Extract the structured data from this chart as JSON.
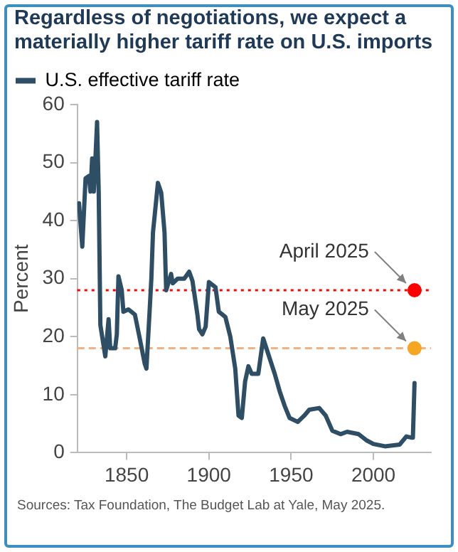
{
  "chart_data": {
    "type": "line",
    "title": "Regardless of negotiations, we expect a materially higher tariff rate on U.S. imports",
    "ylabel": "Percent",
    "legend": "top left",
    "xlim": [
      1820,
      2035
    ],
    "xticks": [
      1850,
      1900,
      1950,
      2000
    ],
    "ylim": [
      0,
      60
    ],
    "yticks": [
      0,
      10,
      20,
      30,
      40,
      50,
      60
    ],
    "series": [
      {
        "name": "U.S. effective tariff rate",
        "color": "#2e4e66",
        "x": [
          1821,
          1823,
          1825,
          1827,
          1828,
          1829,
          1830,
          1831,
          1832,
          1833,
          1834,
          1837,
          1839,
          1840,
          1843,
          1844,
          1845,
          1847,
          1848,
          1851,
          1855,
          1858,
          1861,
          1862,
          1864,
          1865,
          1866,
          1869,
          1871,
          1873,
          1874,
          1877,
          1878,
          1881,
          1885,
          1888,
          1890,
          1893,
          1894,
          1896,
          1898,
          1900,
          1904,
          1906,
          1910,
          1913,
          1916,
          1918,
          1920,
          1922,
          1924,
          1926,
          1930,
          1933,
          1937,
          1940,
          1943,
          1946,
          1949,
          1954,
          1958,
          1961,
          1967,
          1971,
          1975,
          1980,
          1984,
          1991,
          1996,
          2000,
          2007,
          2016,
          2020,
          2023,
          2024,
          2025
        ],
        "values": [
          43,
          35.5,
          47.3,
          47.7,
          45,
          50.7,
          45,
          50.7,
          57,
          44.8,
          22,
          16.6,
          23,
          18,
          18,
          20.4,
          30.4,
          28,
          24.3,
          24.7,
          23.8,
          19.6,
          15.3,
          14.5,
          24.7,
          30,
          38,
          46.5,
          44.8,
          38,
          28,
          30.8,
          29.2,
          30,
          30,
          31.2,
          29.6,
          23.8,
          21.3,
          20.4,
          21.7,
          29.4,
          28.5,
          24.3,
          23.4,
          20,
          14.5,
          6.4,
          6,
          12.3,
          14.9,
          13.6,
          13.6,
          19.7,
          16.2,
          13.6,
          10.6,
          8.1,
          6,
          5.3,
          6.4,
          7.4,
          7.7,
          6.4,
          3.8,
          3.2,
          3.6,
          3.2,
          2.1,
          1.5,
          1.1,
          1.4,
          2.8,
          2.6,
          2.6,
          12
        ],
        "line_style": "solid",
        "marker": "none"
      },
      {
        "type": "scatter",
        "x": [
          2025,
          2025
        ],
        "values": [
          28,
          18
        ],
        "colors": [
          "#ff0000",
          "#f5a623"
        ],
        "marker": "circle"
      }
    ],
    "ref_lines": [
      {
        "axis": "y",
        "value": 28,
        "color": "#ff0000",
        "line_style": "dotted"
      },
      {
        "axis": "y",
        "value": 18,
        "color": "#f4b183",
        "line_style": "dashed"
      }
    ],
    "annotations": [
      {
        "text": "April 2025",
        "x": 2025,
        "y": 28
      },
      {
        "text": "May 2025",
        "x": 2025,
        "y": 18
      },
      "Sources: Tax Foundation, The Budget Lab at Yale, May 2025."
    ]
  }
}
